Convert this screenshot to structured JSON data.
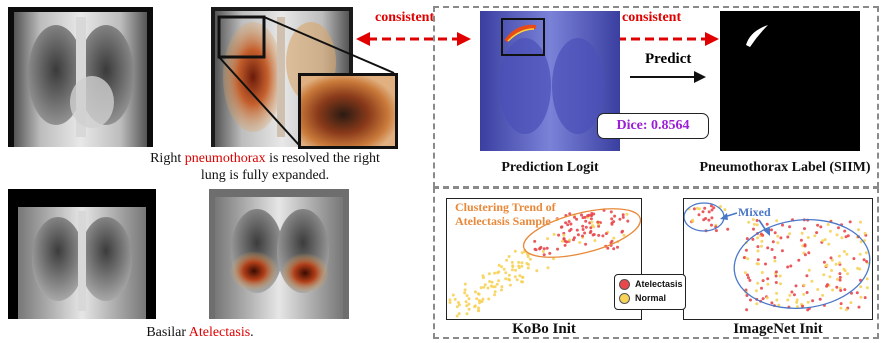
{
  "captions": {
    "top_prefix": "Right ",
    "top_highlight": "pneumothorax",
    "top_suffix_line1": " is resolved the right",
    "top_line2": "lung is fully expanded.",
    "bottom_prefix": "Basilar ",
    "bottom_highlight": "Atelectasis",
    "bottom_suffix": "."
  },
  "arrows": {
    "left_label": "consistent",
    "right_label": "consistent",
    "predict_label": "Predict"
  },
  "panels": {
    "prediction_title": "Prediction Logit",
    "label_title": "Pneumothorax Label (SIIM)",
    "dice_text": "Dice: 0.8564",
    "kobo_title": "KoBo Init",
    "imagenet_title": "ImageNet Init",
    "cluster_annotation_line1": "Clustering Trend of",
    "cluster_annotation_line2": "Atelectasis Sample",
    "mixed_annotation": "Mixed"
  },
  "legend": {
    "items": [
      {
        "label": "Atelectasis",
        "color": "#e8474c"
      },
      {
        "label": "Normal",
        "color": "#f7d35a"
      }
    ]
  },
  "colors": {
    "consistent_red": "#e00000",
    "dice_purple": "#9a1fd6",
    "cluster_orange": "#e8893a",
    "mixed_blue": "#4a78c8"
  }
}
